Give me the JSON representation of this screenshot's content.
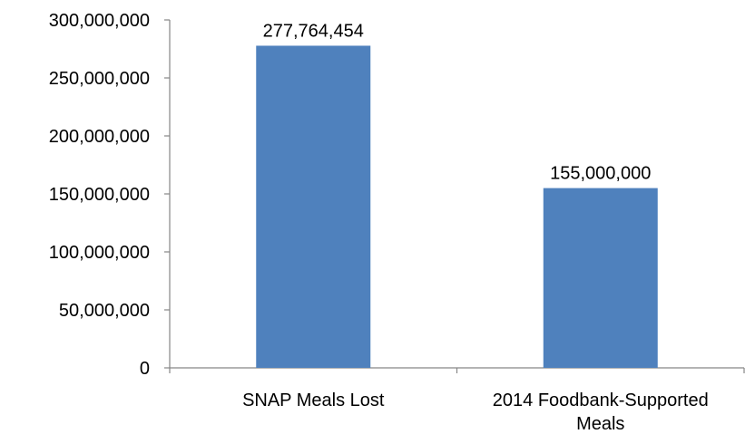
{
  "chart_data": {
    "type": "bar",
    "categories": [
      [
        "SNAP Meals Lost"
      ],
      [
        "2014 Foodbank-Supported",
        "Meals"
      ]
    ],
    "values": [
      277764454,
      155000000
    ],
    "data_labels": [
      "277,764,454",
      "155,000,000"
    ],
    "ylim": [
      0,
      300000000
    ],
    "yticks": [
      0,
      50000000,
      100000000,
      150000000,
      200000000,
      250000000,
      300000000
    ],
    "ytick_labels": [
      "0",
      "50,000,000",
      "100,000,000",
      "150,000,000",
      "200,000,000",
      "250,000,000",
      "300,000,000"
    ],
    "grid": false,
    "legend": "none",
    "bar_color": "#4F81BD"
  }
}
